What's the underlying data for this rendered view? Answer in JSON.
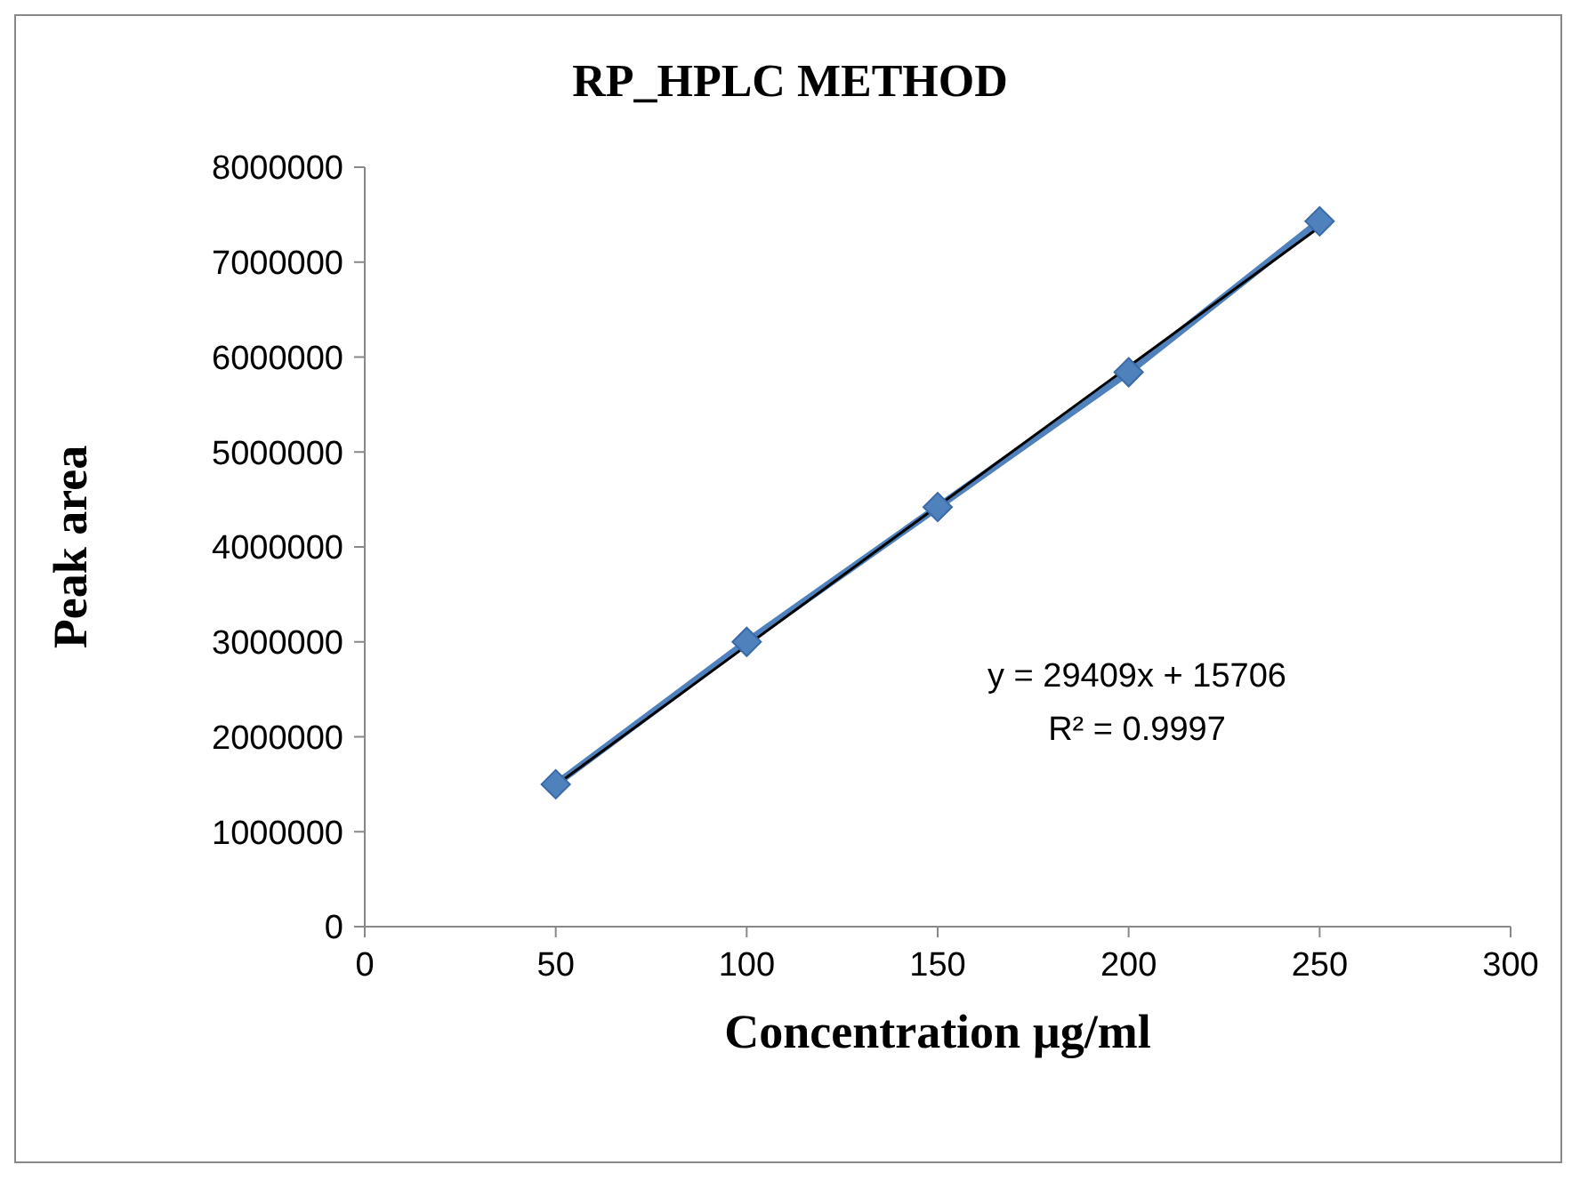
{
  "chart_data": {
    "type": "line",
    "title": "RP_HPLC METHOD",
    "xlabel": "Concentration  µg/ml",
    "ylabel": "Peak   area",
    "x": [
      50,
      100,
      150,
      200,
      250
    ],
    "series": [
      {
        "color": "#4f81bd",
        "marker": "diamond",
        "values": [
          1500000,
          3000000,
          4420000,
          5840000,
          7430000
        ]
      },
      {
        "color": "#000000",
        "marker": "none",
        "x": [
          50,
          250
        ],
        "values": [
          1490000,
          7370000
        ]
      }
    ],
    "xlim": [
      0,
      300
    ],
    "xticks": [
      0,
      50,
      100,
      150,
      200,
      250,
      300
    ],
    "ylim": [
      0,
      8000000
    ],
    "yticks": [
      0,
      1000000,
      2000000,
      3000000,
      4000000,
      5000000,
      6000000,
      7000000,
      8000000
    ],
    "grid": false,
    "legend": false,
    "annotations": [
      "y = 29409x + 15706",
      "R² = 0.9997"
    ]
  }
}
